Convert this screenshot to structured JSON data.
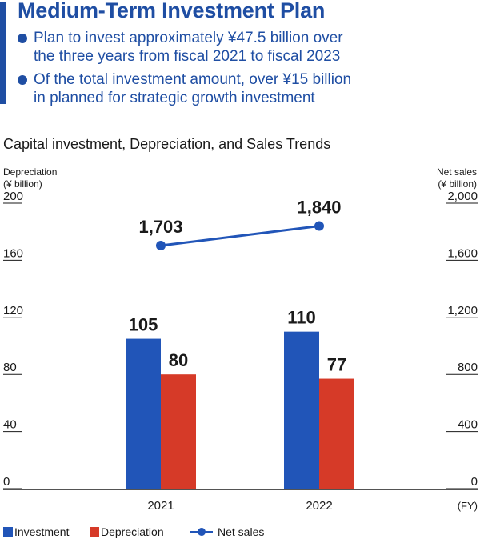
{
  "header": {
    "title": "Medium-Term Investment Plan",
    "bullets": [
      [
        "Plan to invest approximately ¥47.5 billion over",
        "the three years from fiscal 2021 to fiscal 2023"
      ],
      [
        "Of the total investment amount, over ¥15 billion",
        "in planned for strategic growth investment"
      ]
    ]
  },
  "colors": {
    "brand": "#1f4ea3",
    "investment": "#2155b8",
    "depreciation": "#d63a28",
    "net_sales": "#2155b8"
  },
  "chart_data": {
    "type": "bar",
    "title": "Capital investment, Depreciation, and Sales Trends",
    "categories": [
      "2021",
      "2022"
    ],
    "x_unit_label": "(FY)",
    "y_left": {
      "label_lines": [
        "Depreciation",
        "(¥ billion)"
      ],
      "range": [
        0,
        200
      ],
      "ticks": [
        0,
        40,
        80,
        120,
        160,
        200
      ],
      "tick_labels": [
        "0",
        "40",
        "80",
        "120",
        "160",
        "200"
      ]
    },
    "y_right": {
      "label_lines": [
        "Net sales",
        "(¥ billion)"
      ],
      "range": [
        0,
        2000
      ],
      "ticks": [
        0,
        400,
        800,
        1200,
        1600,
        2000
      ],
      "tick_labels": [
        "0",
        "400",
        "800",
        "1,200",
        "1,600",
        "2,000"
      ]
    },
    "series": [
      {
        "name": "Investment",
        "kind": "bar",
        "axis": "left",
        "values": [
          105,
          110
        ],
        "labels": [
          "105",
          "110"
        ]
      },
      {
        "name": "Depreciation",
        "kind": "bar",
        "axis": "left",
        "values": [
          80,
          77
        ],
        "labels": [
          "80",
          "77"
        ]
      },
      {
        "name": "Net sales",
        "kind": "line",
        "axis": "right",
        "values": [
          1703,
          1840
        ],
        "labels": [
          "1,703",
          "1,840"
        ]
      }
    ],
    "grid": false,
    "legend_position": "bottom-left"
  }
}
